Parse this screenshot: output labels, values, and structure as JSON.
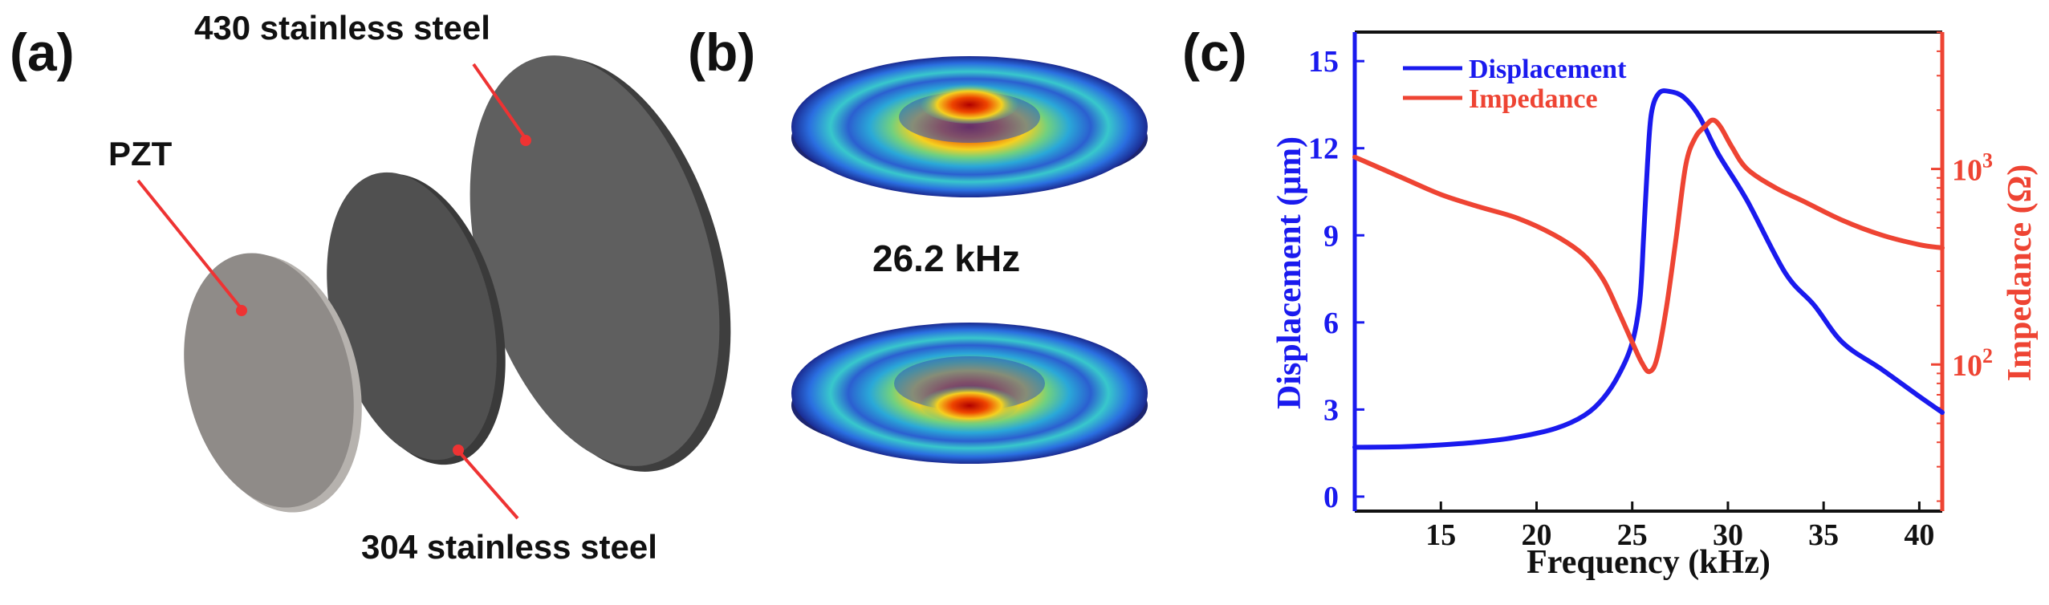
{
  "panels": {
    "a": {
      "label": "(a)",
      "callouts": {
        "top": "430 stainless steel",
        "left": "PZT",
        "bottom": "304 stainless steel"
      }
    },
    "b": {
      "label": "(b)",
      "frequency": "26.2 kHz"
    },
    "c": {
      "label": "(c)"
    }
  },
  "colors": {
    "displacement": "#1a1aee",
    "impedance": "#ee4433",
    "pzt": "#8f8b88",
    "steel304": "#4e4e4e",
    "steel430": "#5f5f5f"
  },
  "chart_data": {
    "type": "line",
    "xlabel": "Frequency (kHz)",
    "ylabel_left": "Displacement (μm)",
    "ylabel_right": "Impedance (Ω)",
    "xlim": [
      10.5,
      41.2
    ],
    "ylim_left": [
      -0.5,
      16
    ],
    "ylim_right_log10": [
      1.25,
      3.7
    ],
    "right_scale": "log",
    "legend_position": "top-left",
    "x_ticks": [
      "15",
      "20",
      "25",
      "30",
      "35",
      "40"
    ],
    "y_left_ticks": [
      "0",
      "3",
      "6",
      "9",
      "12",
      "15"
    ],
    "y_right_ticks": [
      {
        "base": "10",
        "exp": "2",
        "value": 100
      },
      {
        "base": "10",
        "exp": "3",
        "value": 1000
      }
    ],
    "series": [
      {
        "name": "Displacement",
        "axis": "left",
        "color": "#1a1aee",
        "points": [
          [
            10.5,
            1.7
          ],
          [
            13,
            1.72
          ],
          [
            15,
            1.78
          ],
          [
            17,
            1.88
          ],
          [
            19,
            2.05
          ],
          [
            21,
            2.35
          ],
          [
            22.5,
            2.8
          ],
          [
            23.5,
            3.4
          ],
          [
            24.3,
            4.2
          ],
          [
            25,
            5.3
          ],
          [
            25.4,
            6.8
          ],
          [
            25.6,
            9
          ],
          [
            25.8,
            11.5
          ],
          [
            26,
            13.2
          ],
          [
            26.4,
            13.9
          ],
          [
            27,
            13.95
          ],
          [
            27.7,
            13.75
          ],
          [
            28.5,
            13.1
          ],
          [
            29.5,
            11.8
          ],
          [
            31,
            10.2
          ],
          [
            33,
            7.7
          ],
          [
            34.5,
            6.6
          ],
          [
            36,
            5.3
          ],
          [
            38,
            4.4
          ],
          [
            40,
            3.45
          ],
          [
            41.2,
            2.9
          ]
        ]
      },
      {
        "name": "Impedance",
        "axis": "right",
        "color": "#ee4433",
        "points": [
          [
            10.5,
            1150
          ],
          [
            13,
            900
          ],
          [
            15,
            740
          ],
          [
            17,
            640
          ],
          [
            19,
            560
          ],
          [
            21,
            455
          ],
          [
            22.5,
            360
          ],
          [
            23.5,
            270
          ],
          [
            24.3,
            185
          ],
          [
            25,
            130
          ],
          [
            25.5,
            102
          ],
          [
            25.9,
            92
          ],
          [
            26.3,
            108
          ],
          [
            26.8,
            200
          ],
          [
            27.3,
            450
          ],
          [
            27.8,
            1050
          ],
          [
            28.3,
            1450
          ],
          [
            28.8,
            1650
          ],
          [
            29.2,
            1780
          ],
          [
            29.6,
            1650
          ],
          [
            30.2,
            1300
          ],
          [
            31,
            1000
          ],
          [
            32.5,
            800
          ],
          [
            34,
            680
          ],
          [
            36,
            545
          ],
          [
            38,
            460
          ],
          [
            40,
            410
          ],
          [
            41.2,
            395
          ]
        ]
      }
    ]
  }
}
